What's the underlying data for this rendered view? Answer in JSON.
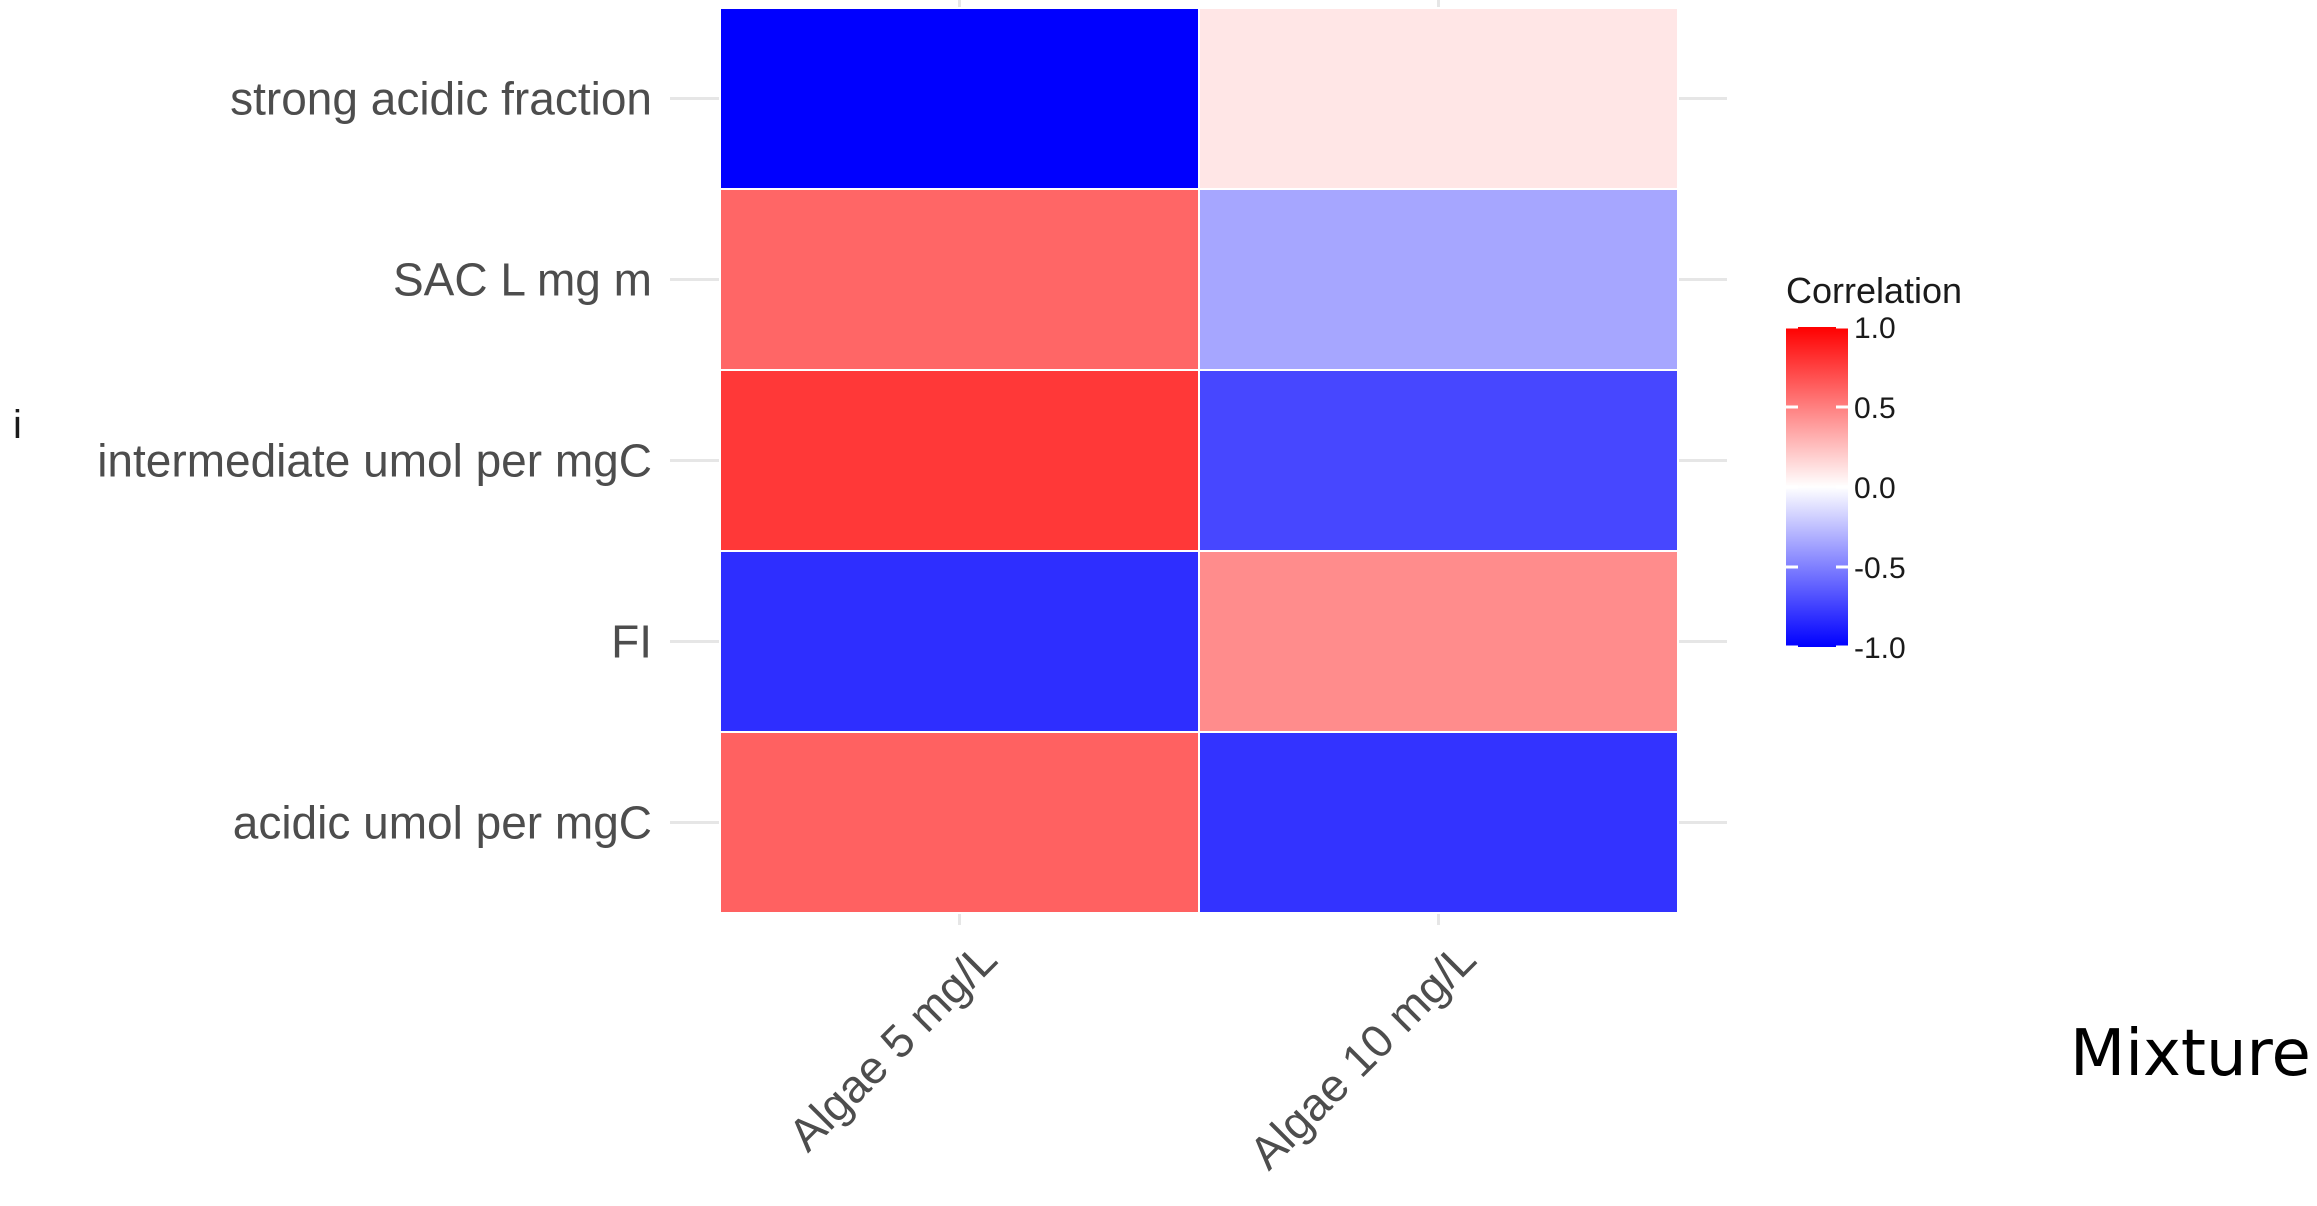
{
  "chart_data": {
    "type": "heatmap",
    "title": "",
    "xlabel": "",
    "ylabel": "i",
    "x_categories": [
      "Algae 5 mg/L",
      "Algae 10 mg/L"
    ],
    "y_categories": [
      "strong acidic fraction",
      "SAC L mg m",
      "intermediate umol per mgC",
      "FI",
      "acidic umol per mgC"
    ],
    "values": [
      [
        -1.0,
        0.1
      ],
      [
        0.6,
        -0.35
      ],
      [
        0.78,
        -0.72
      ],
      [
        -0.82,
        0.45
      ],
      [
        0.62,
        -0.8
      ]
    ],
    "color_scale": {
      "low": "#0000ff",
      "mid": "#ffffff",
      "high": "#ff0000",
      "range": [
        -1,
        1
      ]
    },
    "legend": {
      "title": "Correlation",
      "ticks": [
        "1.0",
        "0.5",
        "0.0",
        "-0.5",
        "-1.0"
      ],
      "tick_values": [
        1,
        0.5,
        0,
        -0.5,
        -1
      ],
      "position": "right"
    },
    "grid": true
  },
  "overlay_text": "Mixture"
}
